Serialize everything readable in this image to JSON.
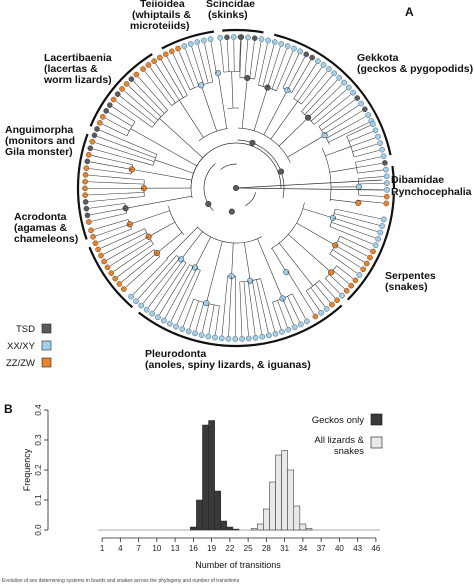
{
  "panel_a": {
    "label": "A",
    "clades": [
      {
        "lines": [
          "Teiioidea",
          "(whiptails &",
          "microteiids)"
        ]
      },
      {
        "lines": [
          "Scincidae",
          "(skinks)"
        ]
      },
      {
        "lines": [
          "Gekkota",
          "(geckos & pygopodids)"
        ]
      },
      {
        "lines": [
          "Lacertibaenia",
          "(lacertas &",
          "worm lizards)"
        ]
      },
      {
        "lines": [
          "Anguimorpha",
          "(monitors and",
          "Gila monster)"
        ]
      },
      {
        "lines": [
          "Dibamidae"
        ]
      },
      {
        "lines": [
          "Rynchocephalia"
        ]
      },
      {
        "lines": [
          "Acrodonta",
          "(agamas &",
          "chameleons)"
        ]
      },
      {
        "lines": [
          "Serpentes",
          "(snakes)"
        ]
      },
      {
        "lines": [
          "Pleurodonta",
          "(anoles, spiny lizards, & iguanas)"
        ]
      }
    ],
    "legend": [
      {
        "label": "TSD",
        "color": "#5a5a5a"
      },
      {
        "label": "XX/XY",
        "color": "#9fd0ee"
      },
      {
        "label": "ZZ/ZW",
        "color": "#e8832a"
      }
    ]
  },
  "panel_b": {
    "label": "B",
    "chart_data": {
      "type": "bar",
      "xlabel": "Number of transitions",
      "ylabel": "Frequency",
      "ylim": [
        0,
        0.4
      ],
      "xlim": [
        0,
        47
      ],
      "yticks": [
        "0.0",
        "0.1",
        "0.2",
        "0.3",
        "0.4"
      ],
      "xticks": [
        "1",
        "4",
        "7",
        "10",
        "13",
        "16",
        "19",
        "22",
        "25",
        "28",
        "31",
        "34",
        "37",
        "40",
        "43",
        "46"
      ],
      "series": [
        {
          "name": "Geckos only",
          "color": "#3a3a3a",
          "x": [
            16,
            17,
            18,
            19,
            20,
            21,
            22,
            23
          ],
          "values": [
            0.01,
            0.1,
            0.35,
            0.365,
            0.13,
            0.03,
            0.01,
            0.003
          ]
        },
        {
          "name": "All lizards & snakes",
          "color": "#e8e8e8",
          "x": [
            26,
            27,
            28,
            29,
            30,
            31,
            32,
            33,
            34,
            35
          ],
          "values": [
            0.005,
            0.02,
            0.07,
            0.16,
            0.25,
            0.265,
            0.2,
            0.08,
            0.02,
            0.005
          ]
        }
      ],
      "legend": [
        {
          "label": "Geckos only",
          "color": "#3a3a3a"
        },
        {
          "label": "All lizards &",
          "label2": "snakes",
          "color": "#e8e8e8"
        }
      ]
    }
  },
  "caption_fragment": "Evolution of sex determining systems in lizards and snakes across the phylogeny and number of transitions"
}
